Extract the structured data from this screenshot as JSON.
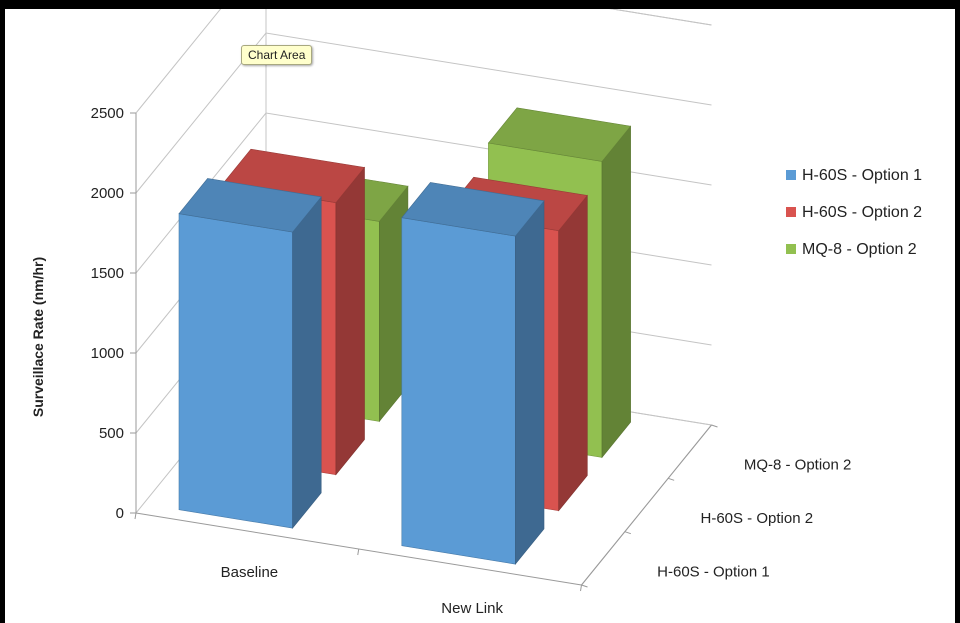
{
  "tooltip": {
    "text": "Chart Area"
  },
  "chart_data": {
    "type": "bar",
    "style": "3d-clustered-depth",
    "categories": [
      "Baseline",
      "New Link"
    ],
    "series": [
      {
        "name": "H-60S - Option 1",
        "color": "#5b9bd5",
        "values": [
          1850,
          2050
        ]
      },
      {
        "name": "H-60S - Option 2",
        "color": "#d9534f",
        "values": [
          1700,
          1750
        ]
      },
      {
        "name": "MQ-8 - Option 2",
        "color": "#92c050",
        "values": [
          1250,
          1850
        ]
      }
    ],
    "depth_labels": [
      "H-60S - Option 1",
      "H-60S - Option 2",
      "MQ-8 - Option 2"
    ],
    "ylabel": "Surveillace Rate (nm/hr)",
    "xlabel": "",
    "yticks": [
      "0",
      "500",
      "1000",
      "1500",
      "2000",
      "2500"
    ],
    "ylim": [
      0,
      2500
    ],
    "grid": true,
    "legend_position": "right"
  }
}
